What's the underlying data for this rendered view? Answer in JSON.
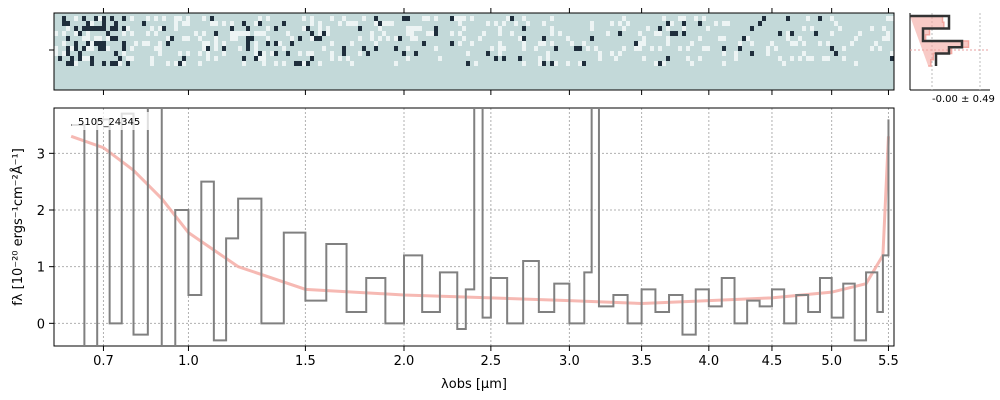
{
  "chart_data": [
    {
      "type": "heatmap",
      "description_colors": {
        "background": "#c3d9d9",
        "dark": "#0d1b2a",
        "light": "#ffffff"
      },
      "x_range": [
        0.55,
        5.55
      ],
      "rows": 10
    },
    {
      "type": "line",
      "annotation": "-0.00 ± 0.49",
      "series": [
        {
          "color": "#333333",
          "values": [
            3,
            3,
            1,
            1,
            4,
            3,
            2,
            2,
            2
          ]
        },
        {
          "color": "#f4a7a0",
          "values": [
            2.5,
            2.6,
            1.5,
            1.2,
            4.5,
            3.2,
            1.8,
            1.6,
            1.4
          ]
        }
      ]
    },
    {
      "type": "line",
      "label": "5105_24345",
      "xlabel": "λobs [μm]",
      "ylabel": "fλ [10⁻²⁰ ergs⁻¹cm⁻²Å⁻¹]",
      "x_scale": "sqrt",
      "xlim": [
        0.55,
        5.55
      ],
      "ylim": [
        -0.4,
        3.8
      ],
      "grid": true,
      "x_ticks": [
        {
          "value": 0.7,
          "label": "0.7"
        },
        {
          "value": 1.0,
          "label": "1.0"
        },
        {
          "value": 1.5,
          "label": "1.5"
        },
        {
          "value": 2.0,
          "label": "2.0"
        },
        {
          "value": 2.5,
          "label": "2.5"
        },
        {
          "value": 3.0,
          "label": "3.0"
        },
        {
          "value": 3.5,
          "label": "3.5"
        },
        {
          "value": 4.0,
          "label": "4.0"
        },
        {
          "value": 4.5,
          "label": "4.5"
        },
        {
          "value": 5.0,
          "label": "5.0"
        },
        {
          "value": 5.5,
          "label": "5.5"
        }
      ],
      "y_ticks": [
        {
          "value": 0,
          "label": "0"
        },
        {
          "value": 1,
          "label": "1"
        },
        {
          "value": 2,
          "label": "2"
        },
        {
          "value": 3,
          "label": "3"
        }
      ],
      "series": [
        {
          "color": "#808080",
          "x": [
            0.6,
            0.64,
            0.68,
            0.72,
            0.76,
            0.8,
            0.85,
            0.9,
            0.95,
            1.0,
            1.05,
            1.1,
            1.15,
            1.2,
            1.3,
            1.4,
            1.5,
            1.6,
            1.7,
            1.8,
            1.9,
            2.0,
            2.1,
            2.2,
            2.3,
            2.35,
            2.4,
            2.45,
            2.5,
            2.6,
            2.7,
            2.8,
            2.9,
            3.0,
            3.1,
            3.15,
            3.2,
            3.3,
            3.4,
            3.5,
            3.6,
            3.7,
            3.8,
            3.9,
            4.0,
            4.1,
            4.2,
            4.3,
            4.4,
            4.5,
            4.6,
            4.7,
            4.8,
            4.9,
            5.0,
            5.1,
            5.2,
            5.3,
            5.4,
            5.45,
            5.5
          ],
          "y": [
            3.5,
            -0.4,
            3.6,
            0.0,
            3.7,
            -0.2,
            3.8,
            -0.4,
            2.0,
            0.5,
            2.5,
            -0.3,
            1.5,
            2.2,
            0.0,
            1.6,
            0.4,
            1.4,
            0.2,
            0.8,
            0.0,
            1.2,
            0.2,
            0.9,
            -0.1,
            0.6,
            3.8,
            0.1,
            0.8,
            0.0,
            1.1,
            0.2,
            0.7,
            0.0,
            0.9,
            3.8,
            0.3,
            0.5,
            0.0,
            0.6,
            0.2,
            0.5,
            -0.2,
            0.6,
            0.3,
            0.8,
            0.0,
            0.4,
            0.3,
            0.6,
            0.0,
            0.5,
            0.2,
            0.8,
            0.1,
            0.7,
            -0.3,
            0.9,
            0.2,
            1.2,
            3.6
          ]
        },
        {
          "color": "#f4a7a0",
          "x": [
            0.6,
            0.7,
            0.8,
            0.9,
            1.0,
            1.2,
            1.5,
            2.0,
            2.5,
            3.0,
            3.5,
            4.0,
            4.5,
            5.0,
            5.3,
            5.45,
            5.5
          ],
          "y": [
            3.3,
            3.1,
            2.7,
            2.2,
            1.6,
            1.0,
            0.6,
            0.5,
            0.45,
            0.4,
            0.35,
            0.4,
            0.45,
            0.55,
            0.7,
            1.2,
            3.3
          ]
        }
      ]
    }
  ]
}
